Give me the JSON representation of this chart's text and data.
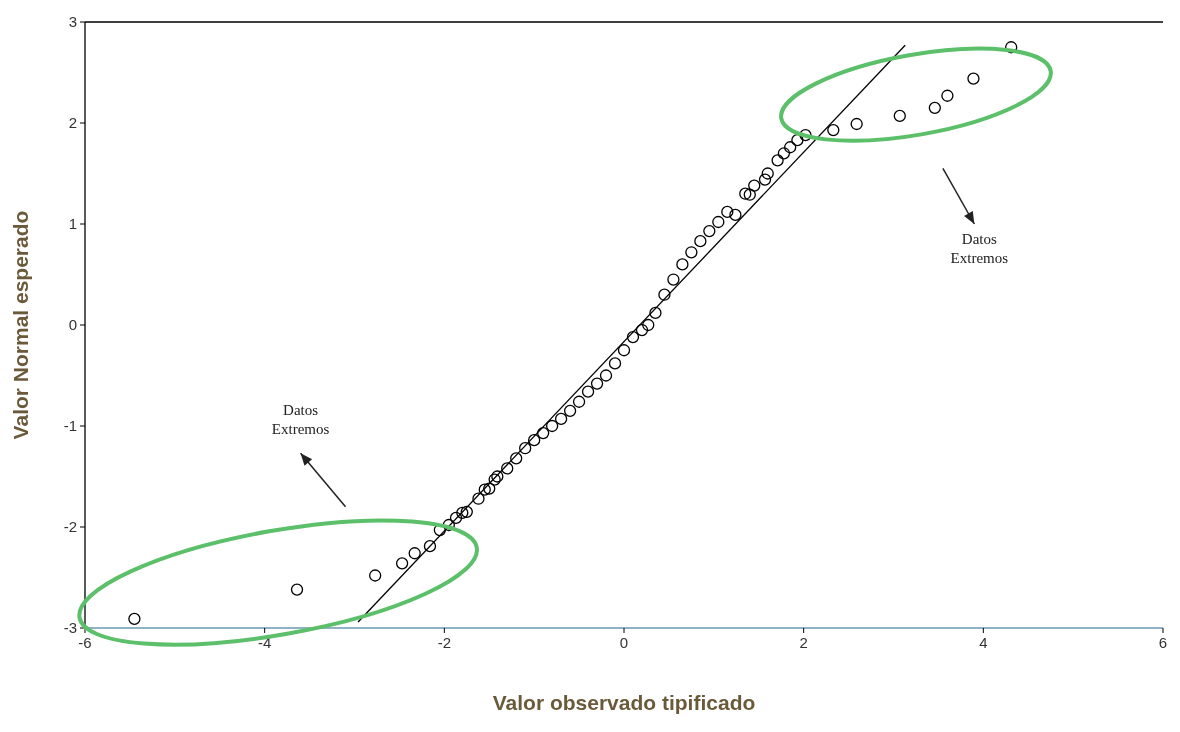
{
  "chart_data": {
    "type": "scatter",
    "xlabel": "Valor observado tipificado",
    "ylabel": "Valor Normal esperado",
    "xlim": [
      -6,
      6
    ],
    "ylim": [
      -3,
      3
    ],
    "xticks": [
      -6,
      -4,
      -2,
      0,
      2,
      4,
      6
    ],
    "yticks": [
      -3,
      -2,
      -1,
      0,
      1,
      2,
      3
    ],
    "grid": false,
    "series": [
      {
        "color": "#000000",
        "marker": "circle",
        "x": [
          -5.45,
          -3.64,
          -2.77,
          -2.47,
          -2.33,
          -2.16,
          -2.05,
          -1.95,
          -1.87,
          -1.8,
          -1.75,
          -1.62,
          -1.55,
          -1.5,
          -1.44,
          -1.41,
          -1.3,
          -1.2,
          -1.1,
          -1.0,
          -0.9,
          -0.8,
          -0.7,
          -0.6,
          -0.5,
          -0.4,
          -0.3,
          -0.2,
          -0.1,
          0.0,
          0.1,
          0.2,
          0.27,
          0.35,
          0.45,
          0.55,
          0.65,
          0.75,
          0.85,
          0.95,
          1.05,
          1.15,
          1.24,
          1.35,
          1.4,
          1.45,
          1.57,
          1.6,
          1.71,
          1.78,
          1.85,
          1.93,
          2.02,
          2.33,
          2.59,
          3.07,
          3.46,
          3.6,
          3.89,
          4.31
        ],
        "values": [
          -2.91,
          -2.62,
          -2.48,
          -2.36,
          -2.26,
          -2.19,
          -2.03,
          -1.98,
          -1.91,
          -1.86,
          -1.85,
          -1.72,
          -1.63,
          -1.62,
          -1.53,
          -1.5,
          -1.42,
          -1.32,
          -1.22,
          -1.14,
          -1.07,
          -1.0,
          -0.93,
          -0.85,
          -0.76,
          -0.66,
          -0.58,
          -0.5,
          -0.38,
          -0.25,
          -0.12,
          -0.05,
          0.0,
          0.12,
          0.3,
          0.45,
          0.6,
          0.72,
          0.83,
          0.93,
          1.02,
          1.12,
          1.09,
          1.3,
          1.29,
          1.38,
          1.44,
          1.5,
          1.63,
          1.7,
          1.76,
          1.83,
          1.88,
          1.93,
          1.99,
          2.07,
          2.15,
          2.27,
          2.44,
          2.75
        ]
      },
      {
        "type": "line",
        "color": "#000000",
        "marker": "none",
        "line_style": "solid",
        "x": [
          -2.96,
          3.13
        ],
        "values": [
          -2.94,
          2.77
        ]
      }
    ],
    "annotations": [
      "Datos Extremos",
      "Datos Extremos"
    ]
  }
}
